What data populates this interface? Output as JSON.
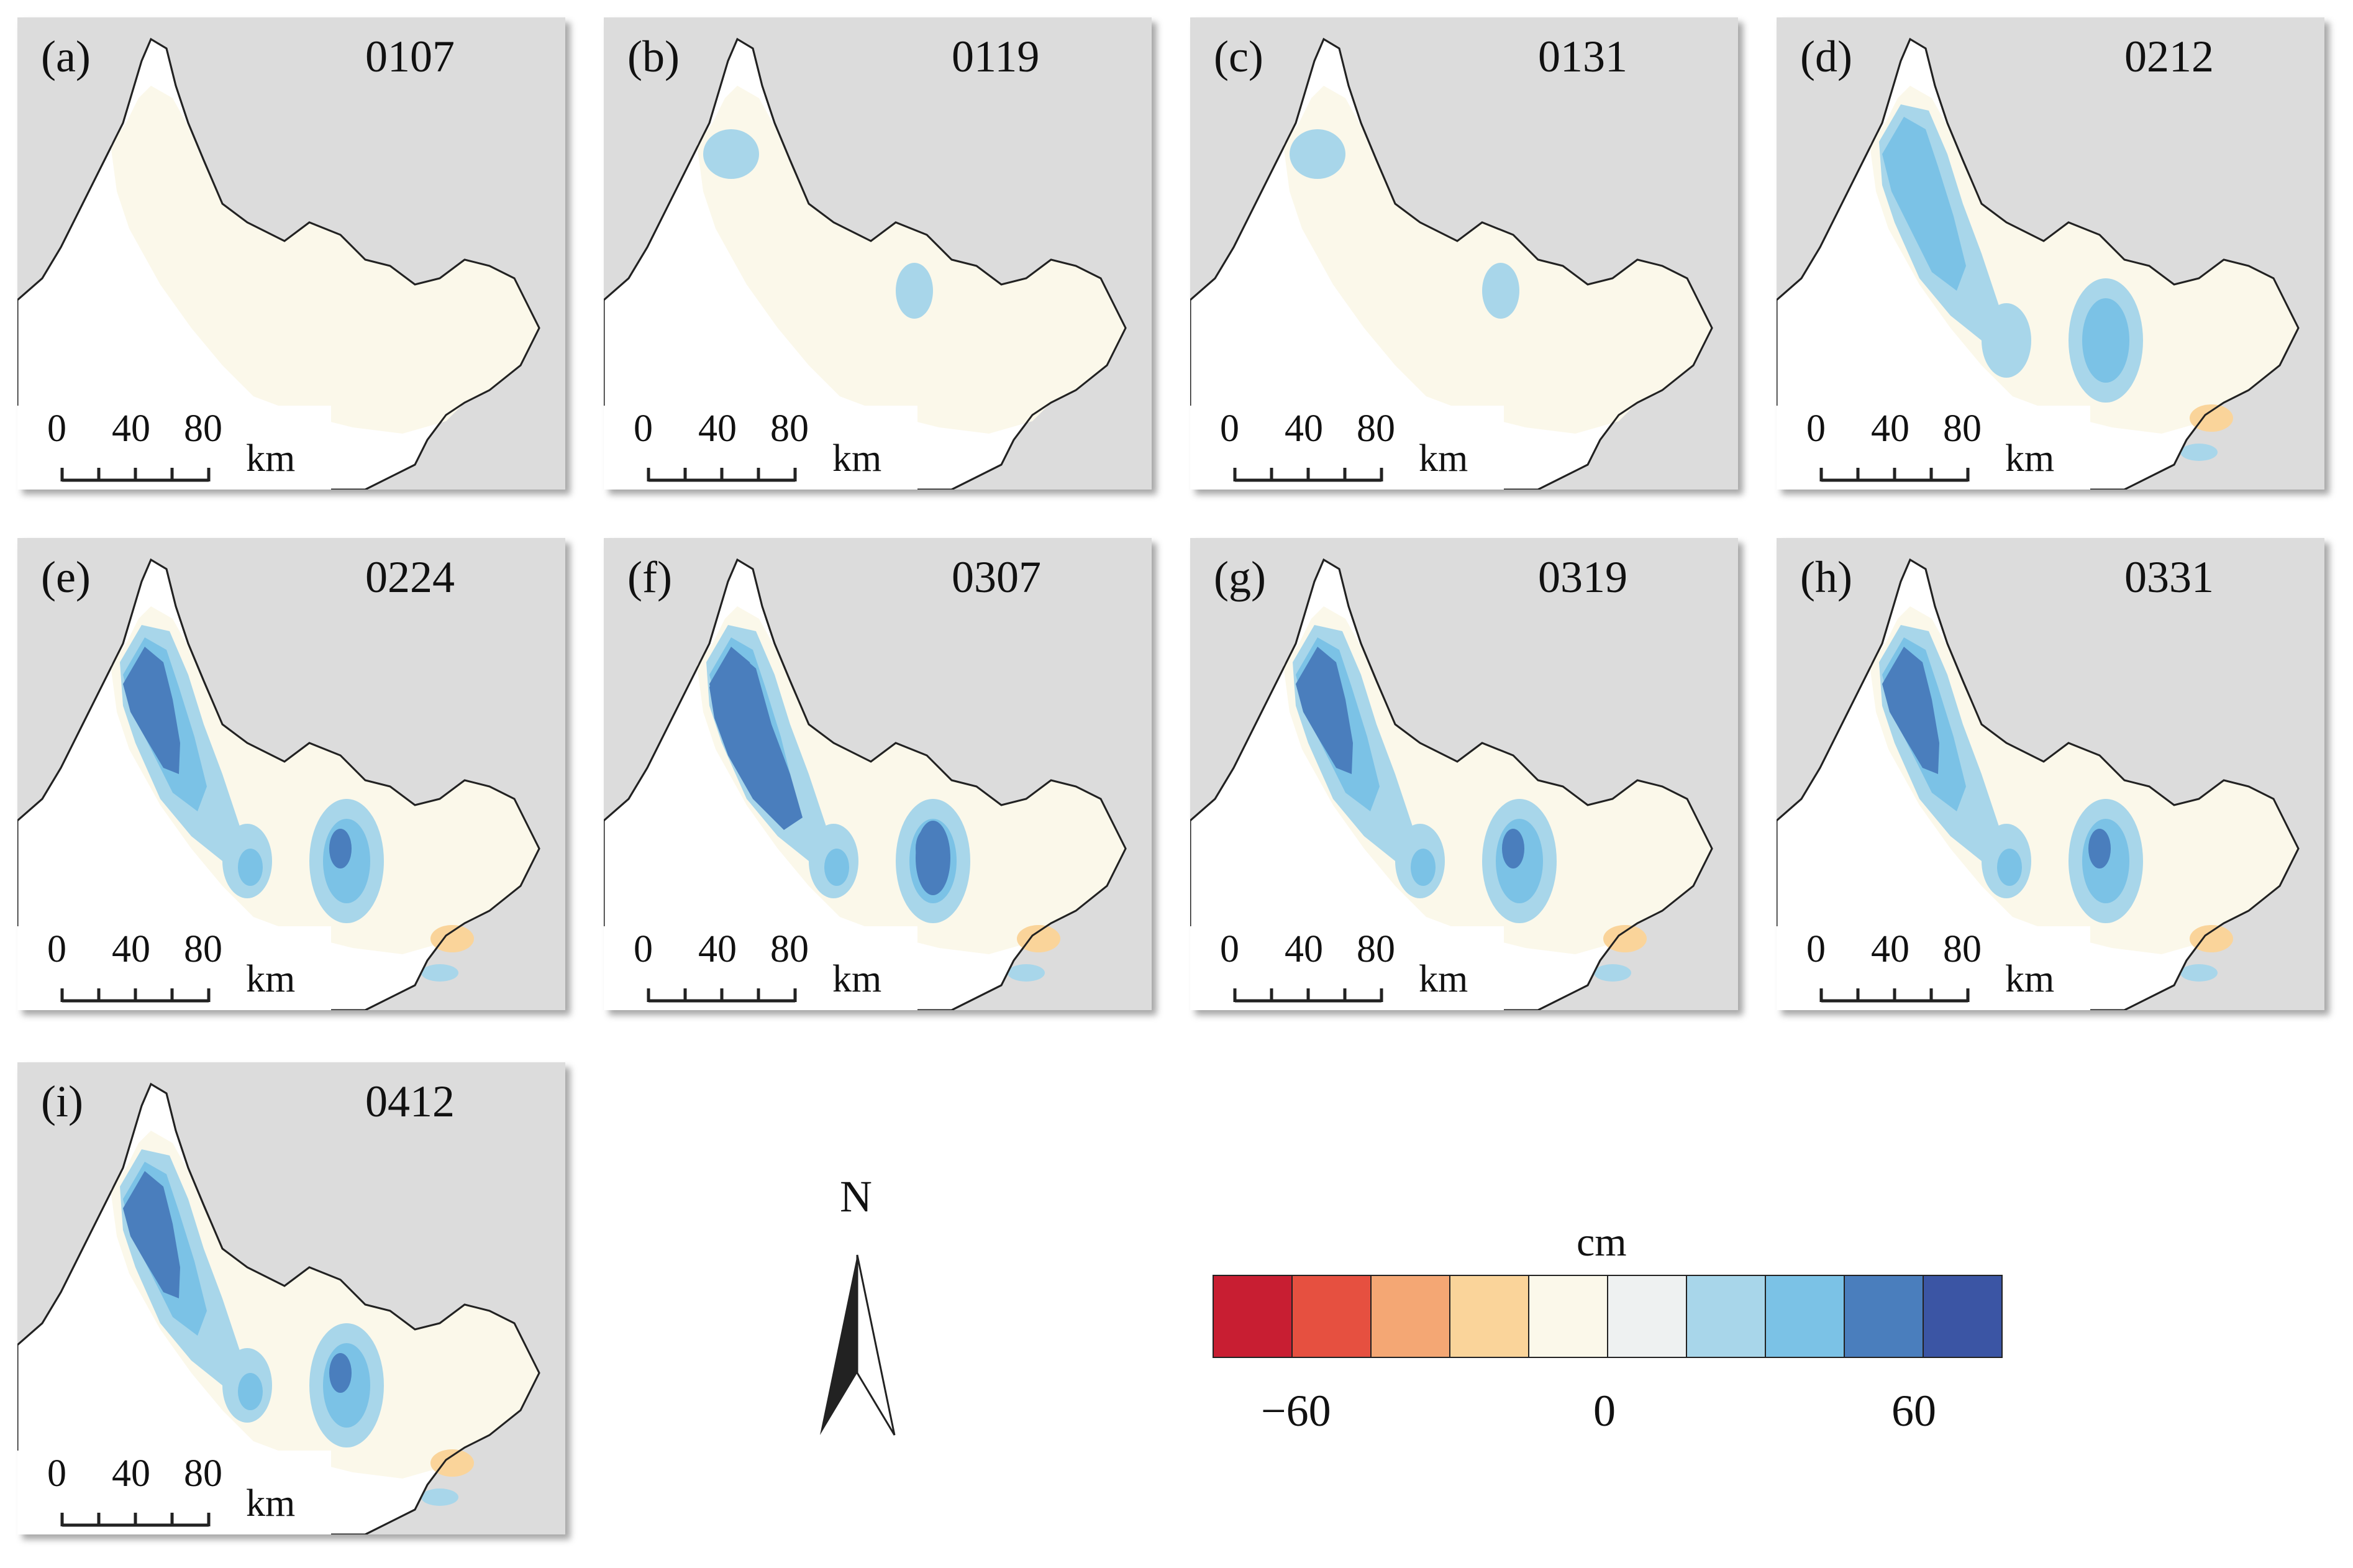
{
  "panels": [
    {
      "label": "(a)",
      "date": "0107",
      "level": 0
    },
    {
      "label": "(b)",
      "date": "0119",
      "level": 1
    },
    {
      "label": "(c)",
      "date": "0131",
      "level": 1
    },
    {
      "label": "(d)",
      "date": "0212",
      "level": 2
    },
    {
      "label": "(e)",
      "date": "0224",
      "level": 3
    },
    {
      "label": "(f)",
      "date": "0307",
      "level": 4
    },
    {
      "label": "(g)",
      "date": "0319",
      "level": 3
    },
    {
      "label": "(h)",
      "date": "0331",
      "level": 3
    },
    {
      "label": "(i)",
      "date": "0412",
      "level": 3
    }
  ],
  "scalebar": {
    "ticks": [
      "0",
      "40",
      "80"
    ],
    "unit": "km"
  },
  "north_arrow": {
    "label": "N"
  },
  "legend": {
    "unit": "cm",
    "ticks": [
      "−60",
      "0",
      "60"
    ],
    "colors": [
      "#c81e32",
      "#e65040",
      "#f4a774",
      "#fad49a",
      "#fbf8ea",
      "#eef1f1",
      "#a8d6ea",
      "#7bc2e6",
      "#4a7ebd",
      "#3b55a4"
    ]
  },
  "colors": {
    "background": "#dcdcdc",
    "land_base": "#fbf8ea",
    "light_blue": "#a8d6ea",
    "mid_blue": "#7bc2e6",
    "dark_blue": "#4a7ebd",
    "orange": "#fad49a"
  }
}
